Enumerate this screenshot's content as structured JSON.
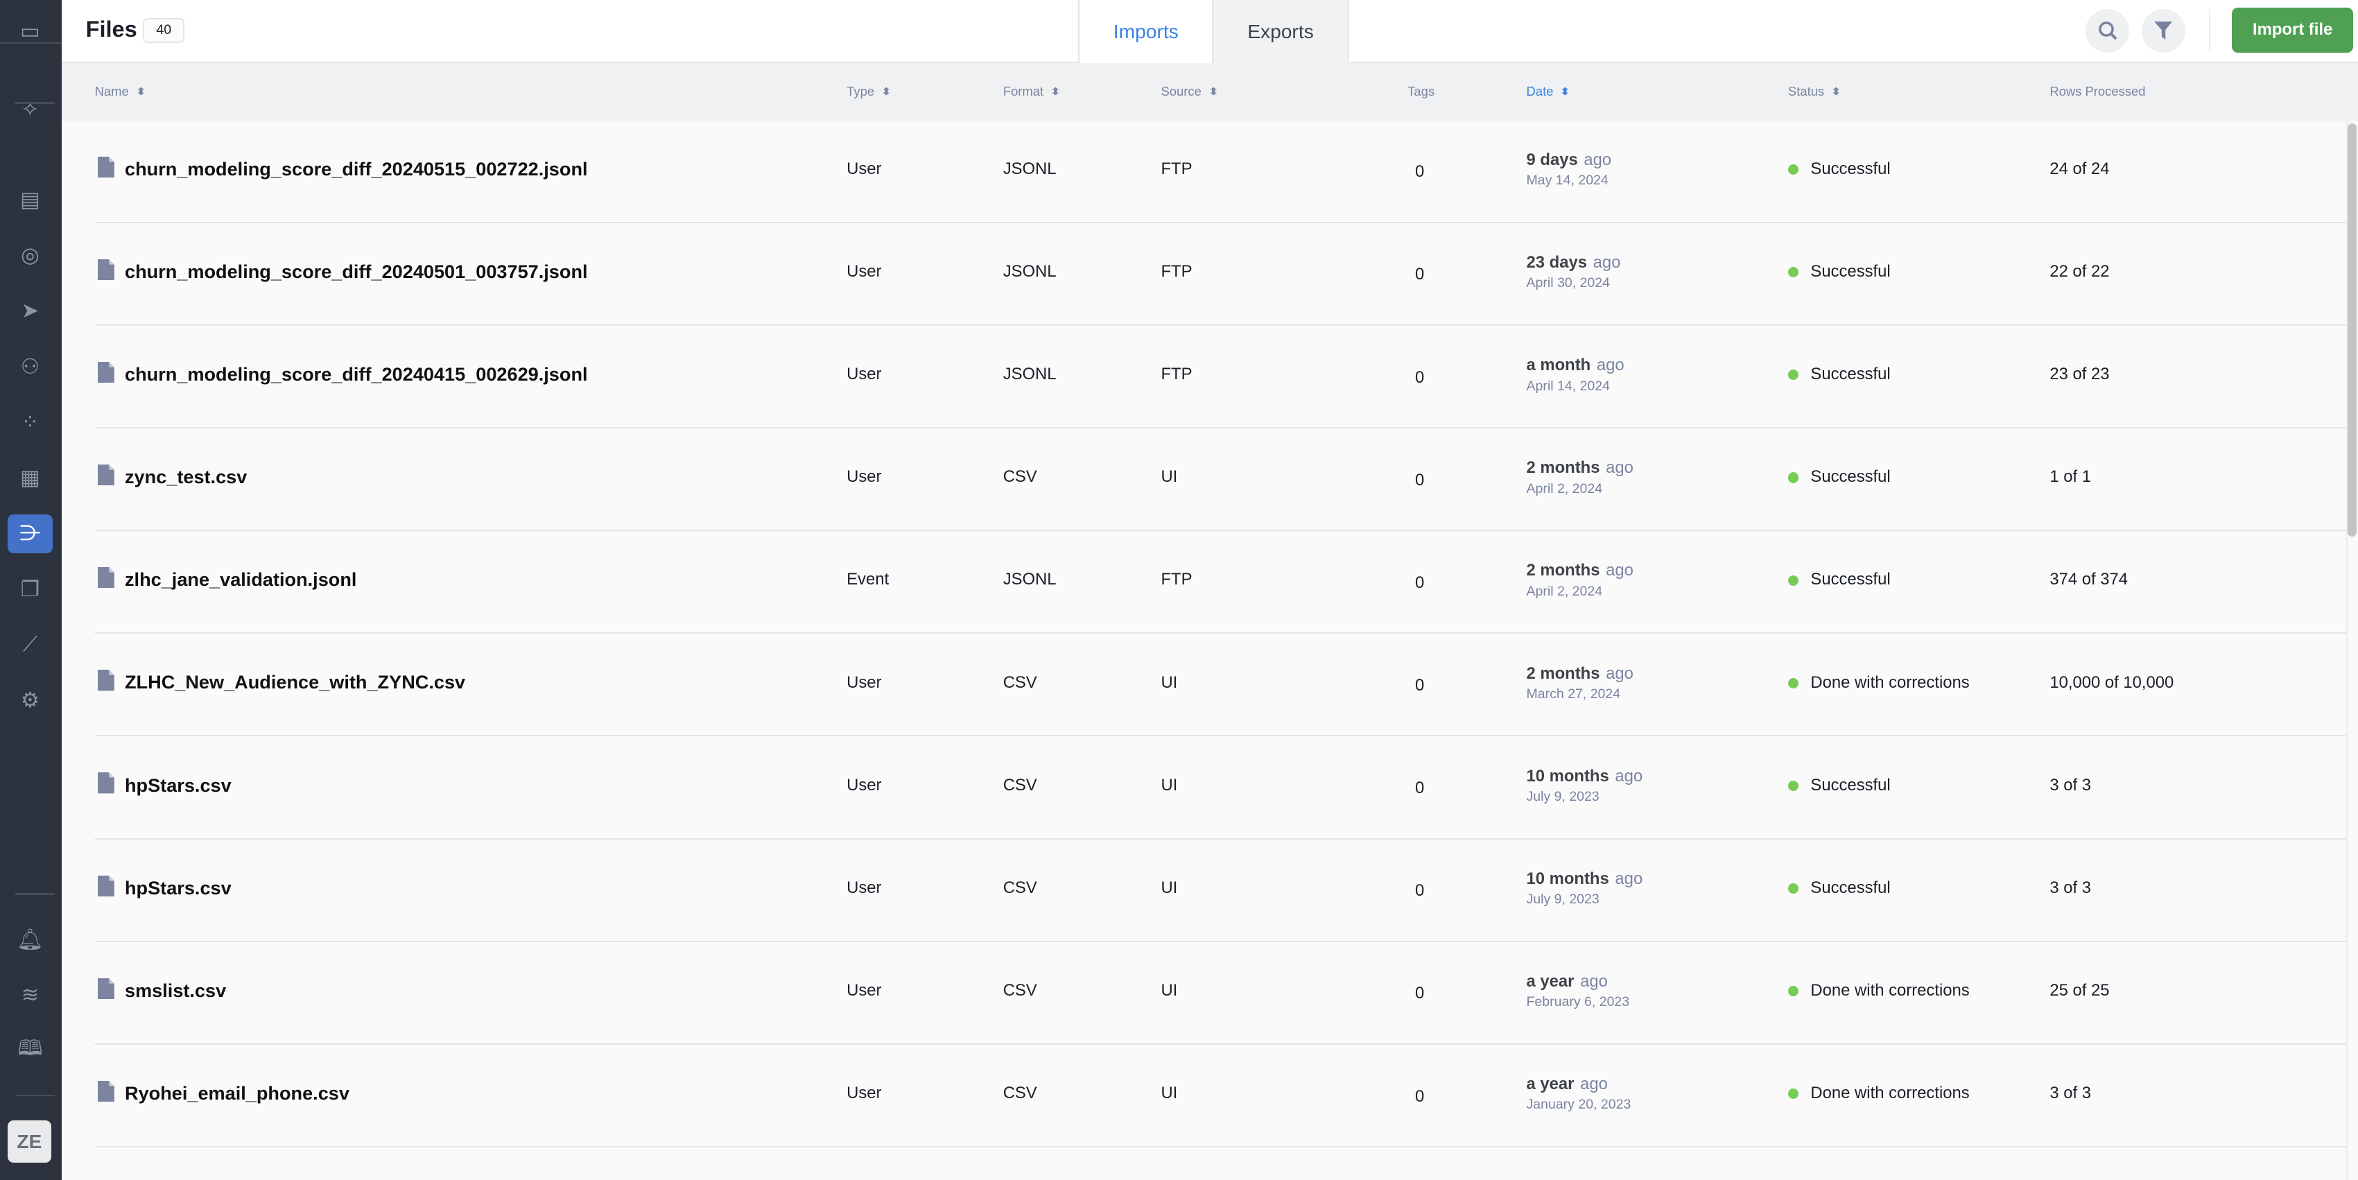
{
  "header": {
    "title": "Files",
    "count": "40",
    "tabs": [
      {
        "label": "Imports",
        "active": true
      },
      {
        "label": "Exports",
        "active": false
      }
    ],
    "import_button": "Import file"
  },
  "colors": {
    "accent": "#3a82e4",
    "primary_button": "#4fa052",
    "status_ok": "#77cc55",
    "sidebar": "#2c323e",
    "sidebar_active": "#4472c9"
  },
  "sidebar": {
    "items": [
      "expand-sidebar-icon",
      "sparkles-icon",
      "dashboard-icon",
      "target-icon",
      "send-icon",
      "hierarchy-icon",
      "segments-icon",
      "calendar-icon",
      "pipeline-icon",
      "layers-icon",
      "analytics-icon",
      "gear-icon",
      "bell-icon",
      "signal-icon",
      "book-icon"
    ],
    "active": "pipeline-icon",
    "avatar": "ZE"
  },
  "columns": {
    "name": "Name",
    "type": "Type",
    "format": "Format",
    "source": "Source",
    "tags": "Tags",
    "date": "Date",
    "status": "Status",
    "rows": "Rows Processed"
  },
  "rows": [
    {
      "name": "churn_modeling_score_diff_20240515_002722.jsonl",
      "type": "User",
      "format": "JSONL",
      "source": "FTP",
      "tags": "0",
      "rel": "9 days",
      "ago": "ago",
      "date": "May 14, 2024",
      "status": "Successful",
      "rows": "24 of 24"
    },
    {
      "name": "churn_modeling_score_diff_20240501_003757.jsonl",
      "type": "User",
      "format": "JSONL",
      "source": "FTP",
      "tags": "0",
      "rel": "23 days",
      "ago": "ago",
      "date": "April 30, 2024",
      "status": "Successful",
      "rows": "22 of 22"
    },
    {
      "name": "churn_modeling_score_diff_20240415_002629.jsonl",
      "type": "User",
      "format": "JSONL",
      "source": "FTP",
      "tags": "0",
      "rel": "a month",
      "ago": "ago",
      "date": "April 14, 2024",
      "status": "Successful",
      "rows": "23 of 23"
    },
    {
      "name": "zync_test.csv",
      "type": "User",
      "format": "CSV",
      "source": "UI",
      "tags": "0",
      "rel": "2 months",
      "ago": "ago",
      "date": "April 2, 2024",
      "status": "Successful",
      "rows": "1 of 1"
    },
    {
      "name": "zlhc_jane_validation.jsonl",
      "type": "Event",
      "format": "JSONL",
      "source": "FTP",
      "tags": "0",
      "rel": "2 months",
      "ago": "ago",
      "date": "April 2, 2024",
      "status": "Successful",
      "rows": "374 of 374"
    },
    {
      "name": "ZLHC_New_Audience_with_ZYNC.csv",
      "type": "User",
      "format": "CSV",
      "source": "UI",
      "tags": "0",
      "rel": "2 months",
      "ago": "ago",
      "date": "March 27, 2024",
      "status": "Done with corrections",
      "rows": "10,000 of 10,000"
    },
    {
      "name": "hpStars.csv",
      "type": "User",
      "format": "CSV",
      "source": "UI",
      "tags": "0",
      "rel": "10 months",
      "ago": "ago",
      "date": "July 9, 2023",
      "status": "Successful",
      "rows": "3 of 3"
    },
    {
      "name": "hpStars.csv",
      "type": "User",
      "format": "CSV",
      "source": "UI",
      "tags": "0",
      "rel": "10 months",
      "ago": "ago",
      "date": "July 9, 2023",
      "status": "Successful",
      "rows": "3 of 3"
    },
    {
      "name": "smslist.csv",
      "type": "User",
      "format": "CSV",
      "source": "UI",
      "tags": "0",
      "rel": "a year",
      "ago": "ago",
      "date": "February 6, 2023",
      "status": "Done with corrections",
      "rows": "25 of 25"
    },
    {
      "name": "Ryohei_email_phone.csv",
      "type": "User",
      "format": "CSV",
      "source": "UI",
      "tags": "0",
      "rel": "a year",
      "ago": "ago",
      "date": "January 20, 2023",
      "status": "Done with corrections",
      "rows": "3 of 3"
    }
  ]
}
